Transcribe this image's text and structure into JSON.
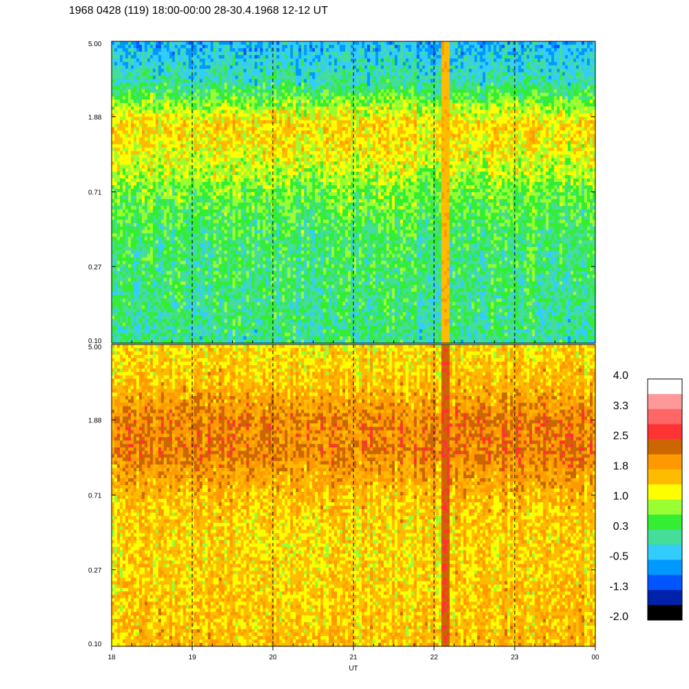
{
  "title": "1968 0428 (119) 18:00-00:00 28-30.4.1968  12-12 UT",
  "chart_data": [
    {
      "type": "heatmap",
      "panel": "upper",
      "x_range": [
        18,
        24
      ],
      "y_ticks": [
        "5.00",
        "1.88",
        "0.71",
        "0.27",
        "0.10"
      ],
      "y_scale": "log",
      "dashed_vertical_lines_at_x": [
        19,
        20,
        21,
        22,
        23
      ],
      "band_levels": [
        {
          "y": 5.0,
          "level": -0.5
        },
        {
          "y": 3.0,
          "level": 0.0
        },
        {
          "y": 1.7,
          "level": 1.4
        },
        {
          "y": 1.2,
          "level": 1.2
        },
        {
          "y": 0.71,
          "level": 0.6
        },
        {
          "y": 0.4,
          "level": 0.3
        },
        {
          "y": 0.1,
          "level": 0.1
        }
      ],
      "features": [
        {
          "desc": "narrow vertical enhancement",
          "x": 22.15,
          "level": 1.8
        }
      ]
    },
    {
      "type": "heatmap",
      "panel": "lower",
      "x_range": [
        18,
        24
      ],
      "y_ticks": [
        "5.00",
        "1.88",
        "0.71",
        "0.27",
        "0.10"
      ],
      "y_scale": "log",
      "dashed_vertical_lines_at_x": [
        19,
        20,
        21,
        22,
        23
      ],
      "band_levels": [
        {
          "y": 5.0,
          "level": 1.3
        },
        {
          "y": 3.0,
          "level": 1.6
        },
        {
          "y": 1.88,
          "level": 2.1
        },
        {
          "y": 1.2,
          "level": 2.1
        },
        {
          "y": 0.71,
          "level": 1.6
        },
        {
          "y": 0.4,
          "level": 1.4
        },
        {
          "y": 0.1,
          "level": 1.6
        }
      ],
      "features": [
        {
          "desc": "narrow vertical enhancement",
          "x": 22.15,
          "level": 2.6
        }
      ]
    }
  ],
  "x_axis": {
    "label": "UT",
    "ticks": [
      "18",
      "19",
      "20",
      "21",
      "22",
      "23",
      "00"
    ]
  },
  "colorbar": {
    "labels": [
      "4.0",
      "3.3",
      "2.5",
      "1.8",
      "1.0",
      "0.3",
      "-0.5",
      "-1.3",
      "-2.0"
    ],
    "colors_top_to_bottom": [
      "#ffffff",
      "#ff9999",
      "#ff6666",
      "#ff3333",
      "#cc6600",
      "#ff9900",
      "#ffbb00",
      "#ffff00",
      "#99ff33",
      "#33ee33",
      "#44dd99",
      "#33ccff",
      "#0099ff",
      "#0055ff",
      "#0022aa",
      "#000000"
    ],
    "range": [
      -2.0,
      4.0
    ]
  }
}
